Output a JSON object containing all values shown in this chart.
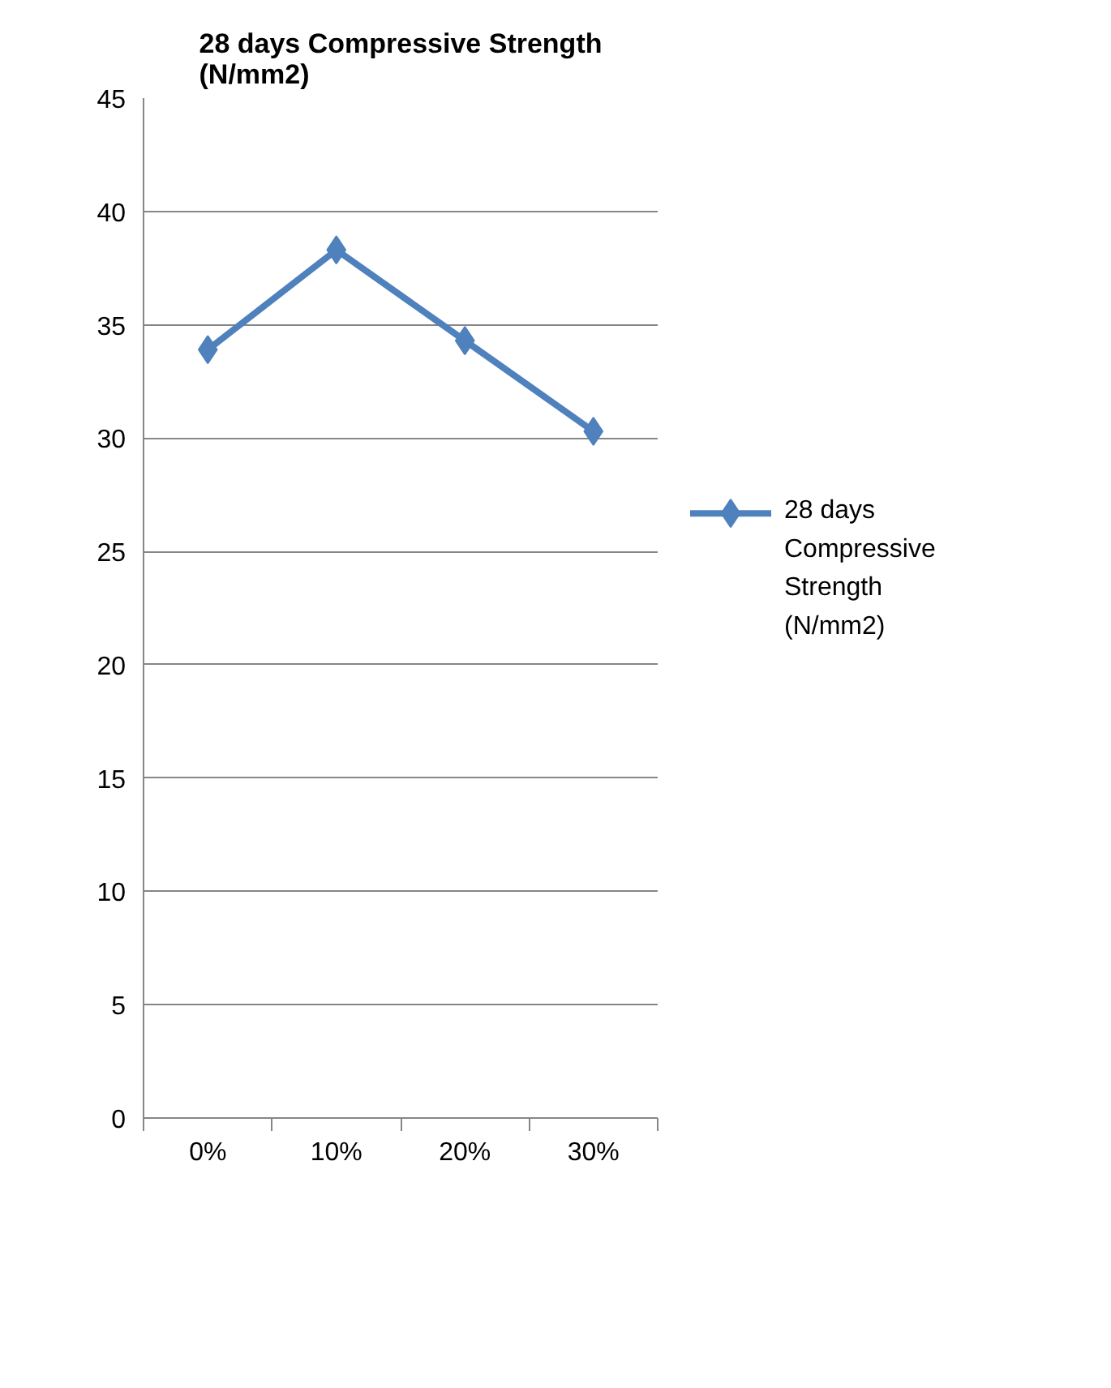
{
  "chart_data": {
    "type": "line",
    "title": "28 days Compressive Strength (N/mm2)",
    "categories": [
      "0%",
      "10%",
      "20%",
      "30%"
    ],
    "series": [
      {
        "name": "28 days Compressive Strength (N/mm2)",
        "color": "#4f81bd",
        "values": [
          33.9,
          38.3,
          34.3,
          30.3
        ]
      }
    ],
    "ylim": [
      0,
      45
    ],
    "yticks": [
      0,
      5,
      10,
      15,
      20,
      25,
      30,
      35,
      40,
      45
    ],
    "grid": "y",
    "legend": "right",
    "marker": "diamond",
    "line_style": "solid"
  }
}
